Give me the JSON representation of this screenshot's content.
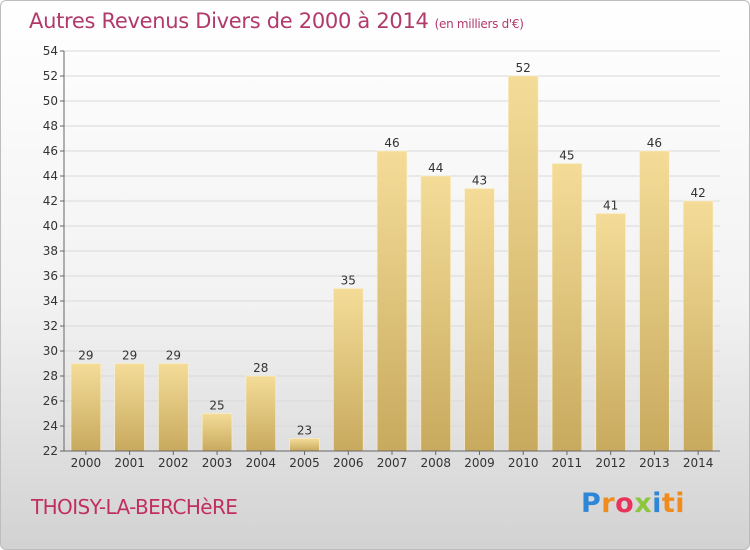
{
  "title": "Autres Revenus Divers de 2000 à 2014",
  "unit_note": "(en milliers d'€)",
  "commune": "THOISY-LA-BERCHèRE",
  "logo": {
    "letters": [
      "P",
      "r",
      "o",
      "x",
      "i",
      "ti"
    ],
    "colors": [
      "#2e86d6",
      "#f08b1d",
      "#e8335a",
      "#8cc63f",
      "#2e86d6",
      "#f08b1d"
    ]
  },
  "chart_data": {
    "type": "bar",
    "categories": [
      "2000",
      "2001",
      "2002",
      "2003",
      "2004",
      "2005",
      "2006",
      "2007",
      "2008",
      "2009",
      "2010",
      "2011",
      "2012",
      "2013",
      "2014"
    ],
    "values": [
      29,
      29,
      29,
      25,
      28,
      23,
      35,
      46,
      44,
      43,
      52,
      45,
      41,
      46,
      42
    ],
    "title": "Autres Revenus Divers de 2000 à 2014",
    "xlabel": "",
    "ylabel": "",
    "ylim": [
      22,
      54
    ],
    "yticks": [
      22,
      24,
      26,
      28,
      30,
      32,
      34,
      36,
      38,
      40,
      42,
      44,
      46,
      48,
      50,
      52,
      54
    ],
    "grid": true,
    "bar_color": "#e2c679"
  }
}
